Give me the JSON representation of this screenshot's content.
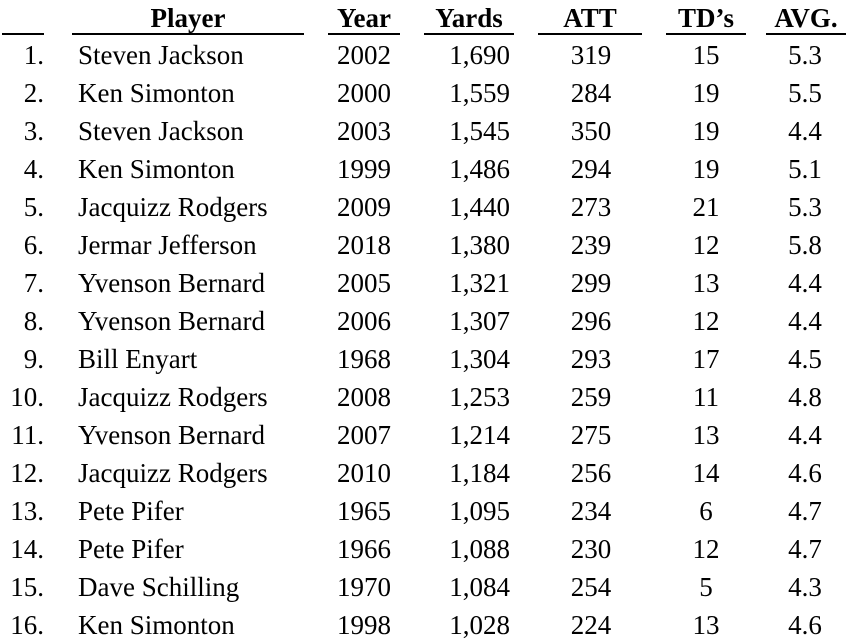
{
  "headers": {
    "player": "Player",
    "year": "Year",
    "yards": "Yards",
    "att": "ATT",
    "td": "TD’s",
    "avg": "AVG."
  },
  "rows": [
    {
      "rank": "1.",
      "player": "Steven Jackson",
      "year": "2002",
      "yards": "1,690",
      "att": "319",
      "td": "15",
      "avg": "5.3"
    },
    {
      "rank": "2.",
      "player": "Ken Simonton",
      "year": "2000",
      "yards": "1,559",
      "att": "284",
      "td": "19",
      "avg": "5.5"
    },
    {
      "rank": "3.",
      "player": "Steven Jackson",
      "year": "2003",
      "yards": "1,545",
      "att": "350",
      "td": "19",
      "avg": "4.4"
    },
    {
      "rank": "4.",
      "player": "Ken Simonton",
      "year": "1999",
      "yards": "1,486",
      "att": "294",
      "td": "19",
      "avg": "5.1"
    },
    {
      "rank": "5.",
      "player": "Jacquizz Rodgers",
      "year": "2009",
      "yards": "1,440",
      "att": "273",
      "td": "21",
      "avg": "5.3"
    },
    {
      "rank": "6.",
      "player": "Jermar Jefferson",
      "year": "2018",
      "yards": "1,380",
      "att": "239",
      "td": "12",
      "avg": "5.8"
    },
    {
      "rank": "7.",
      "player": "Yvenson Bernard",
      "year": "2005",
      "yards": "1,321",
      "att": "299",
      "td": "13",
      "avg": "4.4"
    },
    {
      "rank": "8.",
      "player": "Yvenson Bernard",
      "year": "2006",
      "yards": "1,307",
      "att": "296",
      "td": "12",
      "avg": "4.4"
    },
    {
      "rank": "9.",
      "player": "Bill Enyart",
      "year": "1968",
      "yards": "1,304",
      "att": "293",
      "td": "17",
      "avg": "4.5"
    },
    {
      "rank": "10.",
      "player": "Jacquizz Rodgers",
      "year": "2008",
      "yards": "1,253",
      "att": "259",
      "td": "11",
      "avg": "4.8"
    },
    {
      "rank": "11.",
      "player": "Yvenson Bernard",
      "year": "2007",
      "yards": "1,214",
      "att": "275",
      "td": "13",
      "avg": "4.4"
    },
    {
      "rank": "12.",
      "player": "Jacquizz Rodgers",
      "year": "2010",
      "yards": "1,184",
      "att": "256",
      "td": "14",
      "avg": "4.6"
    },
    {
      "rank": "13.",
      "player": "Pete Pifer",
      "year": "1965",
      "yards": "1,095",
      "att": "234",
      "td": "6",
      "avg": "4.7"
    },
    {
      "rank": "14.",
      "player": "Pete Pifer",
      "year": "1966",
      "yards": "1,088",
      "att": "230",
      "td": "12",
      "avg": "4.7"
    },
    {
      "rank": "15.",
      "player": "Dave Schilling",
      "year": "1970",
      "yards": "1,084",
      "att": "254",
      "td": "5",
      "avg": "4.3"
    },
    {
      "rank": "16.",
      "player": "Ken Simonton",
      "year": "1998",
      "yards": "1,028",
      "att": "224",
      "td": "13",
      "avg": "4.6"
    }
  ]
}
